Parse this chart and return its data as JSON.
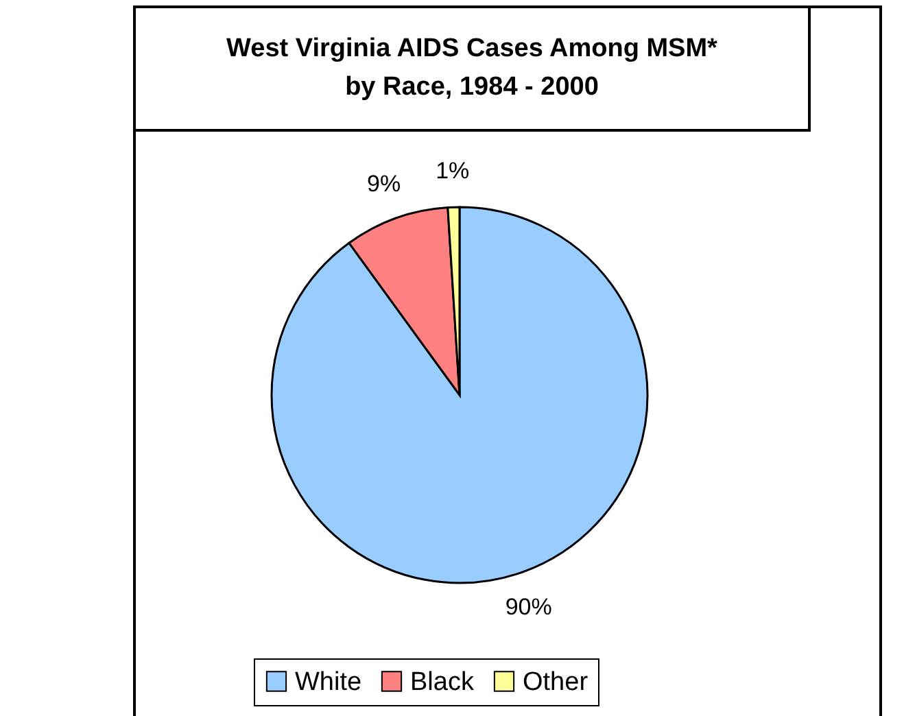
{
  "chart_data": {
    "type": "pie",
    "title": "West Virginia AIDS Cases Among MSM*\nby Race, 1984 - 2000",
    "categories": [
      "White",
      "Black",
      "Other"
    ],
    "values": [
      90,
      9,
      1
    ],
    "value_labels": [
      "90%",
      "9%",
      "1%"
    ],
    "colors": [
      "#99ccff",
      "#ff8080",
      "#ffff99"
    ],
    "legend": "bottom"
  }
}
